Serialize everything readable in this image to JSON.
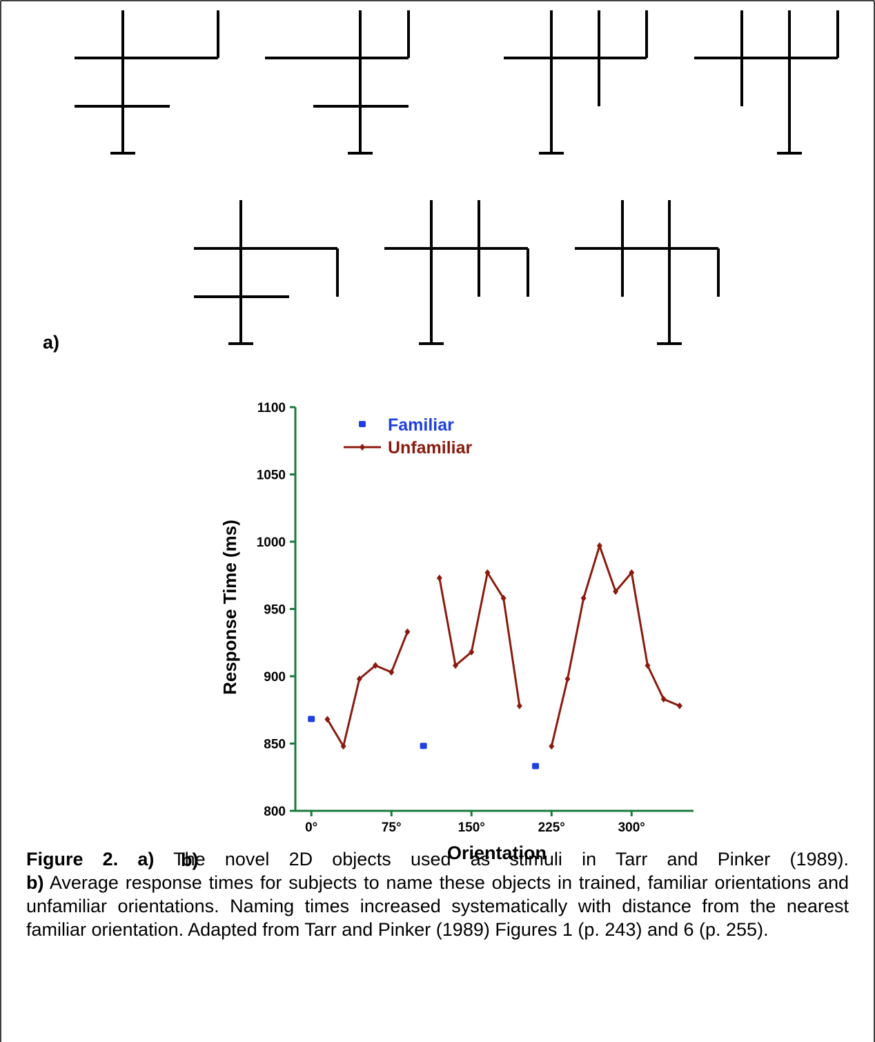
{
  "figure_labels": {
    "a": "a)",
    "b": "b)"
  },
  "chart_data": {
    "type": "line",
    "xlabel": "Orientation",
    "ylabel": "Response Time (ms)",
    "xlim": [
      -15,
      358
    ],
    "ylim": [
      800,
      1100
    ],
    "xticks": [
      {
        "value": 0,
        "label": "0°"
      },
      {
        "value": 75,
        "label": "75°"
      },
      {
        "value": 150,
        "label": "150°"
      },
      {
        "value": 225,
        "label": "225°"
      },
      {
        "value": 300,
        "label": "300°"
      }
    ],
    "yticks": [
      800,
      850,
      900,
      950,
      1000,
      1050,
      1100
    ],
    "axis_color": "#1b7a3a",
    "series": [
      {
        "name": "Familiar",
        "color": "#1f3fe0",
        "marker": "square",
        "line": false,
        "x": [
          0,
          105,
          210
        ],
        "values": [
          868,
          848,
          833
        ]
      },
      {
        "name": "Unfamiliar",
        "color": "#8b1a0e",
        "marker": "diamond",
        "line": true,
        "x": [
          15,
          30,
          45,
          60,
          75,
          90,
          105,
          120,
          135,
          150,
          165,
          180,
          195,
          210,
          225,
          240,
          255,
          270,
          285,
          300,
          315,
          330,
          345
        ],
        "values": [
          868,
          848,
          898,
          908,
          903,
          933,
          null,
          973,
          908,
          918,
          977,
          958,
          878,
          null,
          848,
          898,
          958,
          997,
          963,
          977,
          908,
          883,
          878
        ]
      }
    ]
  },
  "caption": {
    "label": "Figure 2.",
    "a": "a)",
    "a_text": "The novel 2D objects used as stimuli in Tarr and Pinker (1989).",
    "b": "b)",
    "b_text": "Average response times for subjects to name these objects in trained, familiar orientations and unfamiliar orientations. Naming times increased systematically with distance from the nearest familiar orientation. Adapted from Tarr and Pinker (1989) Figures 1 (p. 243) and 6 (p. 255)."
  }
}
